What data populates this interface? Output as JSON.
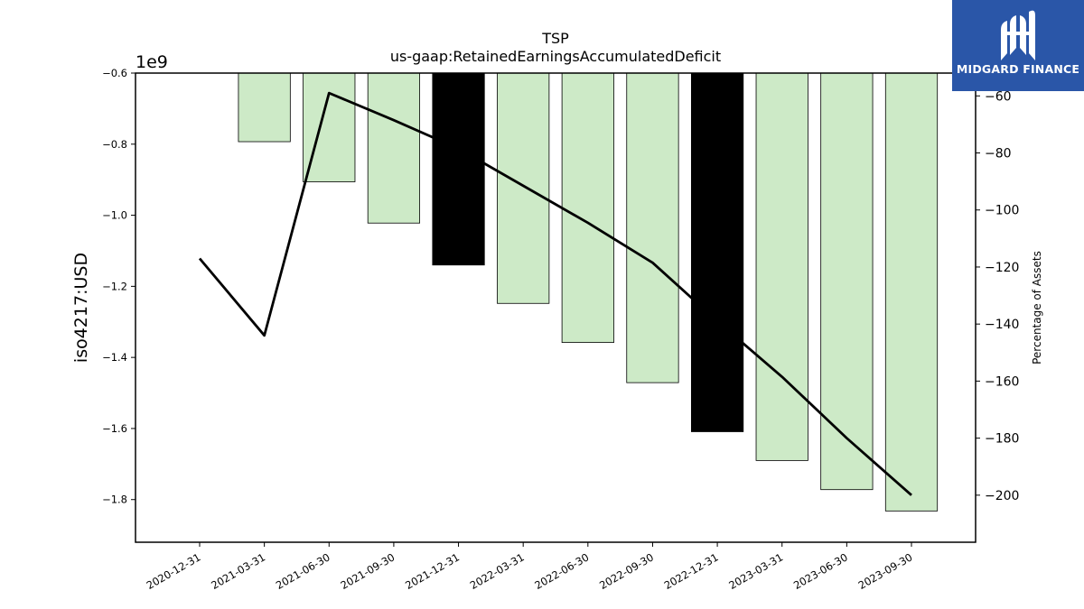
{
  "chart_data": {
    "type": "bar",
    "title": "TSP",
    "subtitle": "us-gaap:RetainedEarningsAccumulatedDeficit",
    "ylabel": "iso4217:USD",
    "y_offset_text": "1e9",
    "y2label": "Percentage of Assets",
    "categories": [
      "2020-12-31",
      "2021-03-31",
      "2021-06-30",
      "2021-09-30",
      "2021-12-31",
      "2022-03-31",
      "2022-06-30",
      "2022-09-30",
      "2022-12-31",
      "2023-03-31",
      "2023-06-30",
      "2023-09-30"
    ],
    "bar_values": [
      null,
      -0.793,
      -0.906,
      -1.022,
      -1.14,
      -1.248,
      -1.358,
      -1.471,
      -1.609,
      -1.69,
      -1.772,
      -1.832
    ],
    "bar_highlight": [
      false,
      false,
      false,
      false,
      true,
      false,
      false,
      false,
      true,
      false,
      false,
      false
    ],
    "bar_color": "#cdeac7",
    "bar_highlight_color": "#000000",
    "line_values": [
      -117,
      -144,
      -59,
      -68.5,
      -78.5,
      -91.5,
      -104.5,
      -118.5,
      -139,
      -158.5,
      -180,
      -200
    ],
    "line_color": "#000000",
    "ylim": [
      -1.92,
      -0.6
    ],
    "y_ticks": [
      -0.6,
      -0.8,
      -1.0,
      -1.2,
      -1.4,
      -1.6,
      -1.8
    ],
    "y2lim": [
      -216.5,
      -52
    ],
    "y2_ticks": [
      -60,
      -80,
      -100,
      -120,
      -140,
      -160,
      -180,
      -200
    ],
    "grid": false
  },
  "logo": {
    "text": "MIDGARD FINANCE"
  }
}
